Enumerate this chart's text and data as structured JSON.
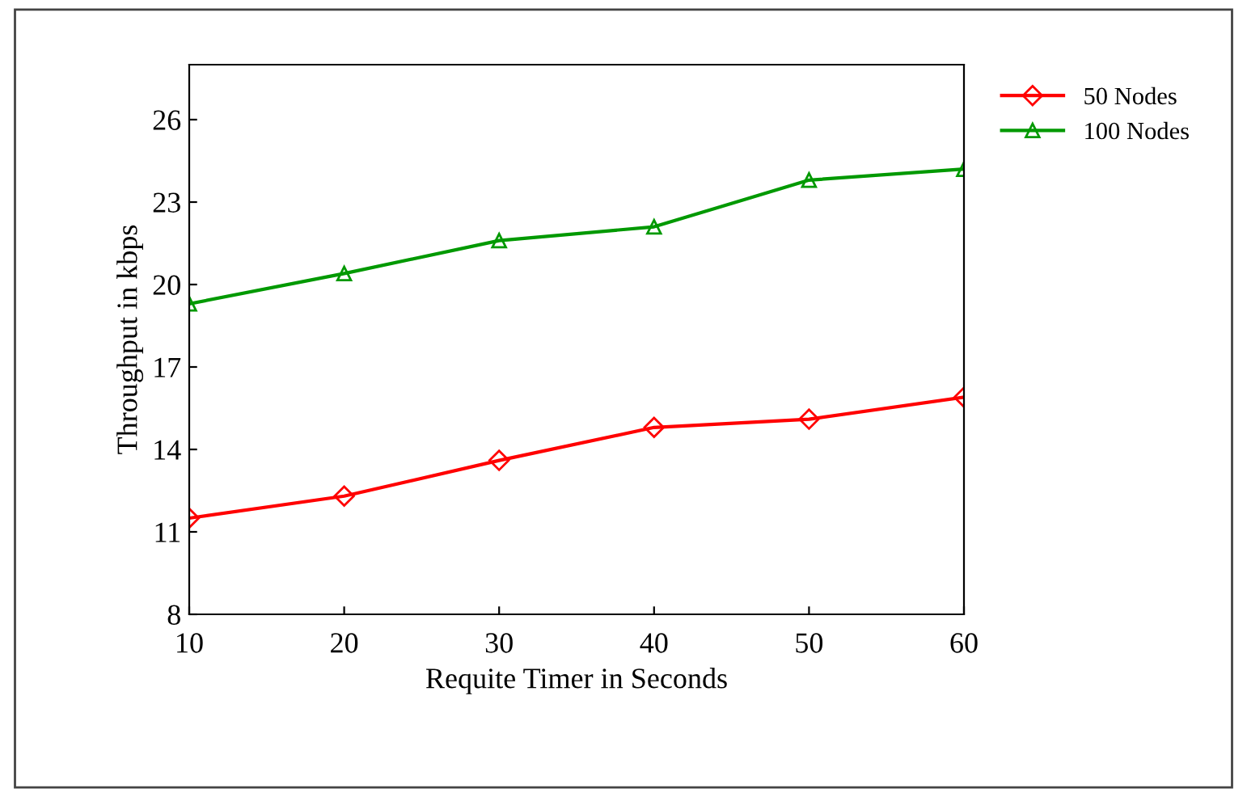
{
  "chart_data": {
    "type": "line",
    "xlabel": "Requite Timer in Seconds",
    "ylabel": "Throughput in kbps",
    "x": [
      10,
      20,
      30,
      40,
      50,
      60
    ],
    "series": [
      {
        "name": "50 Nodes",
        "color": "#ff0000",
        "marker": "diamond",
        "values": [
          11.5,
          12.3,
          13.6,
          14.8,
          15.1,
          15.9
        ]
      },
      {
        "name": "100 Nodes",
        "color": "#009900",
        "marker": "triangle",
        "values": [
          19.3,
          20.4,
          21.6,
          22.1,
          23.8,
          24.2
        ]
      }
    ],
    "xlim": [
      10,
      60
    ],
    "xticks": [
      10,
      20,
      30,
      40,
      50,
      60
    ],
    "ylim": [
      8,
      28
    ],
    "yticks": [
      8,
      11,
      14,
      17,
      20,
      23,
      26
    ],
    "grid": false,
    "legend": "top right",
    "line_style": "solid"
  }
}
